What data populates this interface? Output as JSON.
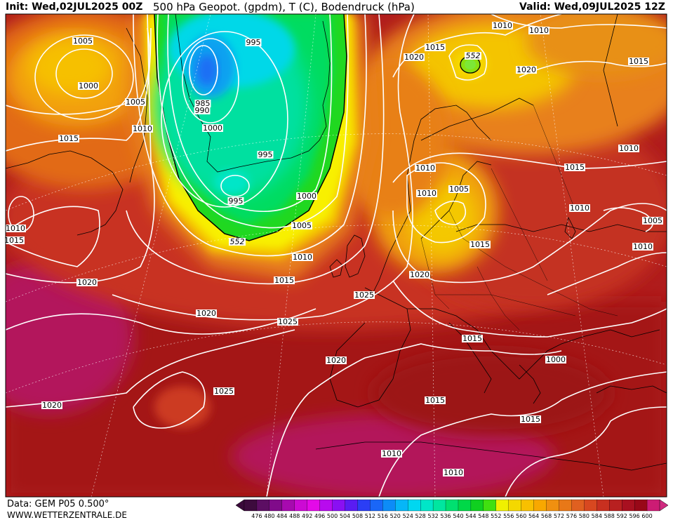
{
  "header": {
    "init": "Init: Wed,02JUL2025 00Z",
    "title": "500 hPa Geopot. (gpdm), T (C), Bodendruck (hPa)",
    "valid": "Valid: Wed,09JUL2025 12Z"
  },
  "footer": {
    "data_source": "Data: GEM P05 0.500°",
    "website": "WWW.WETTERZENTRALE.DE"
  },
  "legend": {
    "ticks": [
      "476",
      "480",
      "484",
      "488",
      "492",
      "496",
      "500",
      "504",
      "508",
      "512",
      "516",
      "520",
      "524",
      "528",
      "532",
      "536",
      "540",
      "544",
      "548",
      "552",
      "556",
      "560",
      "564",
      "568",
      "572",
      "576",
      "580",
      "584",
      "588",
      "592",
      "596",
      "600"
    ],
    "colors": [
      "#3d0b3d",
      "#5c0e63",
      "#800b8a",
      "#a70aaf",
      "#cc0ad4",
      "#e40ae8",
      "#b80bee",
      "#8a10f2",
      "#5a1cf2",
      "#2b3ef5",
      "#1a66f7",
      "#0d8cf7",
      "#06b6f7",
      "#00d7f0",
      "#00e6c8",
      "#00e6a0",
      "#00e070",
      "#00d848",
      "#10d020",
      "#40e010",
      "#f0f000",
      "#f4d800",
      "#f8c000",
      "#f8a800",
      "#f09010",
      "#e87818",
      "#e06020",
      "#d84820",
      "#c83020",
      "#b82020",
      "#a81020",
      "#980818",
      "#cc1c74"
    ]
  },
  "map": {
    "geopotential_contour_label": "552",
    "isobar_labels": [
      "1005",
      "1000",
      "1005",
      "1010",
      "1015",
      "1010",
      "1015",
      "995",
      "985",
      "990",
      "1000",
      "995",
      "995",
      "1000",
      "1005",
      "1010",
      "1015",
      "1020",
      "1010",
      "1010",
      "1015",
      "1020",
      "1020",
      "1015",
      "1010",
      "1005",
      "1010",
      "1015",
      "1010",
      "1010",
      "1005",
      "1010",
      "1015",
      "1020",
      "1025",
      "1020",
      "1025",
      "1025",
      "1020",
      "1020",
      "1015",
      "1015",
      "1015",
      "1010",
      "1010",
      "1000"
    ]
  }
}
